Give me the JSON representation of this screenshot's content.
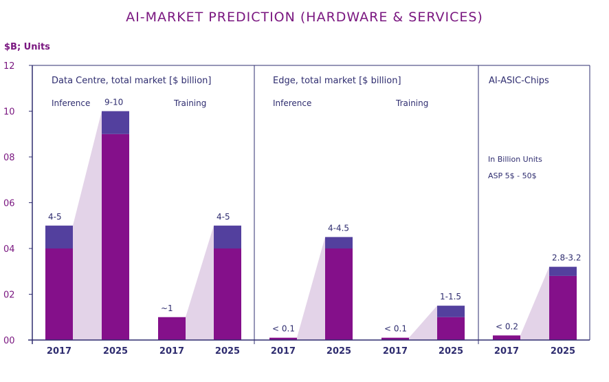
{
  "title": "AI-MARKET PREDICTION (HARDWARE & SERVICES)",
  "unit_label": "$B; Units",
  "colors": {
    "base": "#84108a",
    "top": "#53409e",
    "connector": "#e3d3e8",
    "axis": "#2e2c6f",
    "text": "#2e2c6f",
    "accent": "#7a1780"
  },
  "chart_data": {
    "type": "bar",
    "ylim": [
      0,
      12
    ],
    "yticks": [
      "00",
      "02",
      "04",
      "06",
      "08",
      "10",
      "12"
    ],
    "panels": [
      {
        "title": "Data Centre, total market [$ billion]",
        "groups": [
          "Inference",
          "Training"
        ]
      },
      {
        "title": "Edge, total market [$ billion]",
        "groups": [
          "Inference",
          "Training"
        ]
      },
      {
        "title": "AI-ASIC-Chips",
        "notes": [
          "In Billion Units",
          "ASP 5$ - 50$"
        ]
      }
    ],
    "bars": [
      {
        "x": "2017",
        "panel": 0,
        "group": "Inference",
        "low": 4,
        "high": 5,
        "label": "4-5"
      },
      {
        "x": "2025",
        "panel": 0,
        "group": "Inference",
        "low": 9,
        "high": 10,
        "label": "9-10"
      },
      {
        "x": "2017",
        "panel": 0,
        "group": "Training",
        "low": 1,
        "high": 1,
        "label": "~1"
      },
      {
        "x": "2025",
        "panel": 0,
        "group": "Training",
        "low": 4,
        "high": 5,
        "label": "4-5"
      },
      {
        "x": "2017",
        "panel": 1,
        "group": "Inference",
        "low": 0.1,
        "high": 0.1,
        "label": "< 0.1"
      },
      {
        "x": "2025",
        "panel": 1,
        "group": "Inference",
        "low": 4,
        "high": 4.5,
        "label": "4-4.5"
      },
      {
        "x": "2017",
        "panel": 1,
        "group": "Training",
        "low": 0.1,
        "high": 0.1,
        "label": "< 0.1"
      },
      {
        "x": "2025",
        "panel": 1,
        "group": "Training",
        "low": 1,
        "high": 1.5,
        "label": "1-1.5"
      },
      {
        "x": "2017",
        "panel": 2,
        "group": "",
        "low": 0.2,
        "high": 0.2,
        "label": "< 0.2"
      },
      {
        "x": "2025",
        "panel": 2,
        "group": "",
        "low": 2.8,
        "high": 3.2,
        "label": "2.8-3.2"
      }
    ]
  }
}
